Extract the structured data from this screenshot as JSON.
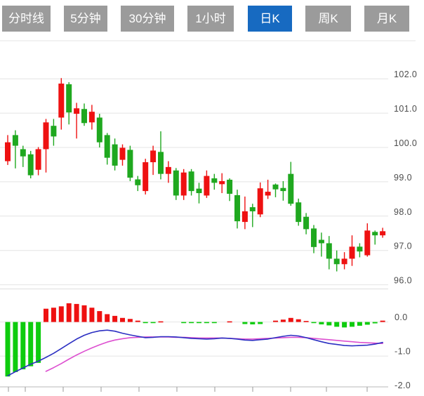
{
  "tabs": {
    "items": [
      {
        "name": "tab-timeline",
        "label": "分时线",
        "active": false
      },
      {
        "name": "tab-5min",
        "label": "5分钟",
        "active": false
      },
      {
        "name": "tab-30min",
        "label": "30分钟",
        "active": false
      },
      {
        "name": "tab-1hour",
        "label": "1小时",
        "active": false
      },
      {
        "name": "tab-daily-k",
        "label": "日K",
        "active": true
      },
      {
        "name": "tab-weekly-k",
        "label": "周K",
        "active": false
      },
      {
        "name": "tab-monthly-k",
        "label": "月K",
        "active": false
      }
    ]
  },
  "colors": {
    "up_red": "#ee1111",
    "down_green": "#1fa81f",
    "hist_green": "#0ecc0e",
    "dif_blue": "#2b2fc2",
    "dea_magenta": "#dd4fd0",
    "grid": "#e4e4e4",
    "pane_border": "#c8c8c8",
    "tick": "#9a9a9a",
    "axis_text": "#4c4c4c",
    "tab_bg": "#9b9b9b",
    "tab_active_bg": "#176ac1",
    "tab_text": "#ffffff"
  },
  "chart_data": {
    "type": "candlestick+macd",
    "title": "Daily K-line with MACD sub-chart",
    "grid": true,
    "price_axis": {
      "side": "right",
      "ticks": [
        {
          "label": "102.0",
          "value": 102.0
        },
        {
          "label": "101.0",
          "value": 101.0
        },
        {
          "label": "100.0",
          "value": 100.0
        },
        {
          "label": "99.0",
          "value": 99.0
        },
        {
          "label": "98.0",
          "value": 98.0
        },
        {
          "label": "97.0",
          "value": 97.0
        },
        {
          "label": "96.0",
          "value": 96.0
        }
      ],
      "range": [
        95.7,
        103.1
      ]
    },
    "candles_ohlc": [
      [
        99.6,
        100.36,
        99.49,
        100.15
      ],
      [
        100.36,
        100.5,
        99.39,
        100.05
      ],
      [
        99.95,
        100.05,
        99.43,
        99.74
      ],
      [
        99.8,
        99.9,
        99.1,
        99.19
      ],
      [
        99.35,
        100.01,
        99.19,
        99.95
      ],
      [
        99.95,
        100.83,
        99.27,
        100.73
      ],
      [
        100.63,
        100.83,
        100.05,
        100.32
      ],
      [
        100.87,
        102.02,
        100.52,
        101.86
      ],
      [
        101.84,
        101.9,
        100.67,
        101.02
      ],
      [
        100.98,
        101.3,
        100.26,
        101.14
      ],
      [
        101.12,
        101.28,
        100.63,
        100.71
      ],
      [
        100.73,
        101.24,
        100.52,
        101.04
      ],
      [
        100.87,
        100.98,
        100.0,
        100.15
      ],
      [
        100.36,
        100.42,
        99.5,
        99.7
      ],
      [
        100.09,
        100.26,
        99.33,
        99.47
      ],
      [
        99.64,
        100.09,
        99.47,
        99.99
      ],
      [
        99.93,
        100.05,
        99.02,
        99.12
      ],
      [
        99.07,
        99.17,
        98.73,
        98.9
      ],
      [
        98.73,
        99.67,
        98.63,
        99.57
      ],
      [
        99.57,
        100.05,
        99.2,
        99.91
      ],
      [
        99.87,
        100.47,
        99.07,
        99.23
      ],
      [
        99.23,
        99.6,
        98.97,
        99.43
      ],
      [
        99.33,
        99.4,
        98.47,
        98.6
      ],
      [
        98.6,
        99.37,
        98.47,
        99.27
      ],
      [
        99.3,
        99.37,
        98.6,
        98.73
      ],
      [
        98.8,
        98.97,
        98.37,
        98.67
      ],
      [
        98.6,
        99.33,
        98.53,
        99.17
      ],
      [
        99.1,
        99.23,
        98.77,
        98.97
      ],
      [
        98.93,
        99.25,
        98.67,
        99.02
      ],
      [
        99.06,
        99.1,
        98.44,
        98.65
      ],
      [
        98.61,
        98.77,
        97.64,
        97.85
      ],
      [
        97.83,
        98.57,
        97.62,
        98.14
      ],
      [
        98.26,
        98.36,
        97.68,
        98.14
      ],
      [
        98.05,
        98.98,
        97.97,
        98.81
      ],
      [
        98.6,
        99.06,
        98.5,
        98.71
      ],
      [
        98.92,
        98.95,
        98.55,
        98.78
      ],
      [
        98.82,
        99.02,
        98.45,
        98.73
      ],
      [
        99.23,
        99.58,
        98.3,
        98.36
      ],
      [
        98.4,
        98.51,
        97.72,
        97.83
      ],
      [
        97.98,
        98.09,
        97.47,
        97.62
      ],
      [
        97.64,
        97.74,
        96.92,
        97.1
      ],
      [
        97.31,
        97.52,
        96.82,
        97.21
      ],
      [
        97.21,
        97.42,
        96.45,
        96.76
      ],
      [
        96.76,
        97.0,
        96.39,
        96.6
      ],
      [
        96.6,
        96.95,
        96.45,
        96.76
      ],
      [
        96.76,
        97.44,
        96.55,
        97.11
      ],
      [
        97.11,
        97.21,
        96.8,
        96.97
      ],
      [
        96.86,
        97.79,
        96.82,
        97.58
      ],
      [
        97.54,
        97.58,
        97.17,
        97.44
      ],
      [
        97.44,
        97.66,
        97.37,
        97.56
      ]
    ],
    "macd": {
      "axis_ticks": [
        {
          "label": "0.0",
          "value": 0.0
        },
        {
          "label": "-1.0",
          "value": -1.0
        },
        {
          "label": "-2.0",
          "value": -2.0
        }
      ],
      "range": [
        -2.05,
        0.55
      ],
      "histogram": [
        -1.6,
        -1.47,
        -1.39,
        -1.3,
        -1.2,
        0.39,
        0.42,
        0.46,
        0.55,
        0.53,
        0.49,
        0.42,
        0.32,
        0.23,
        0.18,
        0.12,
        0.09,
        0.04,
        -0.03,
        -0.03,
        0.02,
        0,
        0,
        -0.03,
        -0.03,
        -0.03,
        -0.03,
        -0.02,
        0,
        0.02,
        0,
        -0.06,
        -0.07,
        -0.06,
        0,
        0.04,
        0.07,
        0.12,
        0.08,
        0.03,
        -0.03,
        -0.07,
        -0.1,
        -0.14,
        -0.16,
        -0.14,
        -0.11,
        -0.08,
        -0.04,
        0.04
      ],
      "dif_line": [
        -1.58,
        -1.46,
        -1.35,
        -1.24,
        -1.15,
        -1.04,
        -0.92,
        -0.78,
        -0.64,
        -0.5,
        -0.39,
        -0.31,
        -0.26,
        -0.24,
        -0.27,
        -0.33,
        -0.38,
        -0.42,
        -0.46,
        -0.45,
        -0.43,
        -0.43,
        -0.44,
        -0.46,
        -0.48,
        -0.49,
        -0.5,
        -0.49,
        -0.47,
        -0.48,
        -0.5,
        -0.53,
        -0.54,
        -0.52,
        -0.5,
        -0.46,
        -0.42,
        -0.39,
        -0.41,
        -0.46,
        -0.52,
        -0.58,
        -0.63,
        -0.66,
        -0.69,
        -0.7,
        -0.69,
        -0.68,
        -0.65,
        -0.6
      ],
      "dea_line": {
        "start_index": 5,
        "values": [
          -1.45,
          -1.34,
          -1.22,
          -1.09,
          -0.97,
          -0.86,
          -0.76,
          -0.67,
          -0.59,
          -0.53,
          -0.49,
          -0.46,
          -0.45,
          -0.44,
          -0.44,
          -0.44,
          -0.44,
          -0.45,
          -0.45,
          -0.46,
          -0.47,
          -0.47,
          -0.47,
          -0.47,
          -0.48,
          -0.49,
          -0.5,
          -0.5,
          -0.49,
          -0.48,
          -0.47,
          -0.46,
          -0.45,
          -0.45,
          -0.46,
          -0.48,
          -0.5,
          -0.52,
          -0.54,
          -0.56,
          -0.58,
          -0.6,
          -0.61,
          -0.62,
          -0.63
        ]
      }
    }
  }
}
